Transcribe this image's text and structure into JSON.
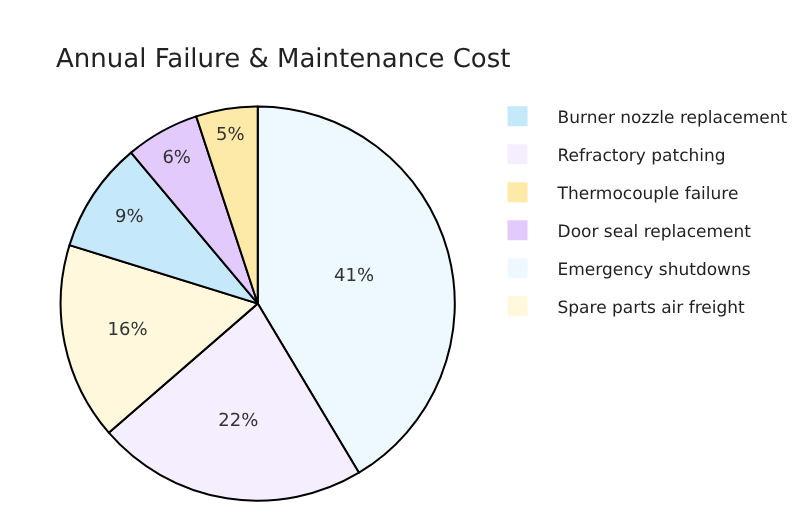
{
  "chart_data": {
    "type": "pie",
    "title": "Annual Failure & Maintenance Cost",
    "categories": [
      "Burner nozzle replacement",
      "Refractory patching",
      "Thermocouple failure",
      "Door seal replacement",
      "Emergency shutdowns",
      "Spare parts air freight"
    ],
    "values": [
      9,
      22,
      5,
      6,
      41,
      16
    ],
    "colors": [
      "#c5e8fb",
      "#f5eefe",
      "#fde9a8",
      "#e2cafc",
      "#eef8ff",
      "#fff8dc"
    ],
    "value_labels": [
      "9%",
      "22%",
      "5%",
      "6%",
      "41%",
      "16%"
    ],
    "legend": "right"
  }
}
